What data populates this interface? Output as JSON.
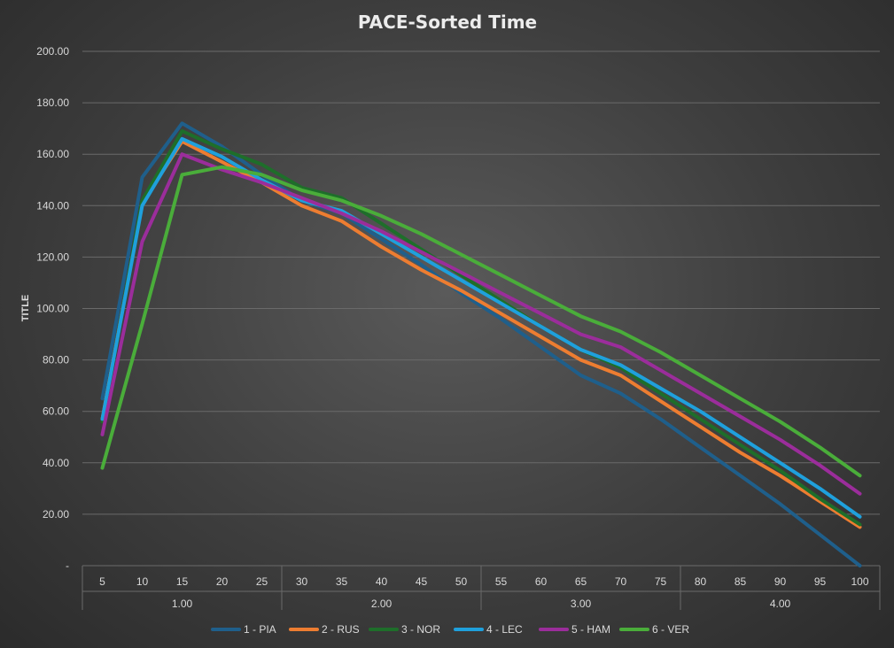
{
  "chart_data": {
    "type": "line",
    "title": "PACE-Sorted Time",
    "xlabel": "",
    "ylabel": "TITLE",
    "ylim": [
      0,
      200
    ],
    "yticks": [
      0,
      20,
      40,
      60,
      80,
      100,
      120,
      140,
      160,
      180,
      200
    ],
    "ytick_labels": [
      "-",
      "20.00",
      "40.00",
      "60.00",
      "80.00",
      "100.00",
      "120.00",
      "140.00",
      "160.00",
      "180.00",
      "200.00"
    ],
    "categories": [
      "5",
      "10",
      "15",
      "20",
      "25",
      "30",
      "35",
      "40",
      "45",
      "50",
      "55",
      "60",
      "65",
      "70",
      "75",
      "80",
      "85",
      "90",
      "95",
      "100"
    ],
    "category_groups": [
      {
        "label": "1.00",
        "count": 5
      },
      {
        "label": "2.00",
        "count": 5
      },
      {
        "label": "3.00",
        "count": 5
      },
      {
        "label": "4.00",
        "count": 5
      }
    ],
    "legend_position": "bottom",
    "series": [
      {
        "name": "1 - PIA",
        "color": "#1f5f8b",
        "values": [
          65,
          151,
          172,
          163,
          152,
          142,
          137,
          127,
          117,
          106,
          96,
          85,
          74,
          67,
          57,
          46,
          35,
          24,
          12,
          0
        ]
      },
      {
        "name": "2 - RUS",
        "color": "#ed7d31",
        "values": [
          57,
          141,
          165,
          157,
          149,
          140,
          134,
          124,
          115,
          107,
          98,
          89,
          80,
          74,
          64,
          54,
          44,
          35,
          25,
          15
        ]
      },
      {
        "name": "3 - NOR",
        "color": "#1e6e2a",
        "values": [
          56,
          142,
          169,
          162,
          156,
          147,
          143,
          133,
          123,
          113,
          103,
          93,
          84,
          77,
          67,
          57,
          47,
          37,
          26,
          16
        ]
      },
      {
        "name": "4 - LEC",
        "color": "#1fa0dc",
        "values": [
          57,
          140,
          166,
          159,
          150,
          142,
          138,
          129,
          120,
          111,
          102,
          93,
          84,
          78,
          69,
          60,
          50,
          40,
          30,
          19
        ]
      },
      {
        "name": "5 - HAM",
        "color": "#9b2d9b",
        "values": [
          51,
          126,
          160,
          154,
          149,
          143,
          137,
          130,
          122,
          114,
          106,
          98,
          90,
          85,
          76,
          67,
          58,
          49,
          39,
          28
        ]
      },
      {
        "name": "6 - VER",
        "color": "#4aad3a",
        "values": [
          38,
          94,
          152,
          155,
          152,
          146,
          142,
          136,
          129,
          121,
          113,
          105,
          97,
          91,
          83,
          74,
          65,
          56,
          46,
          35
        ]
      }
    ]
  }
}
